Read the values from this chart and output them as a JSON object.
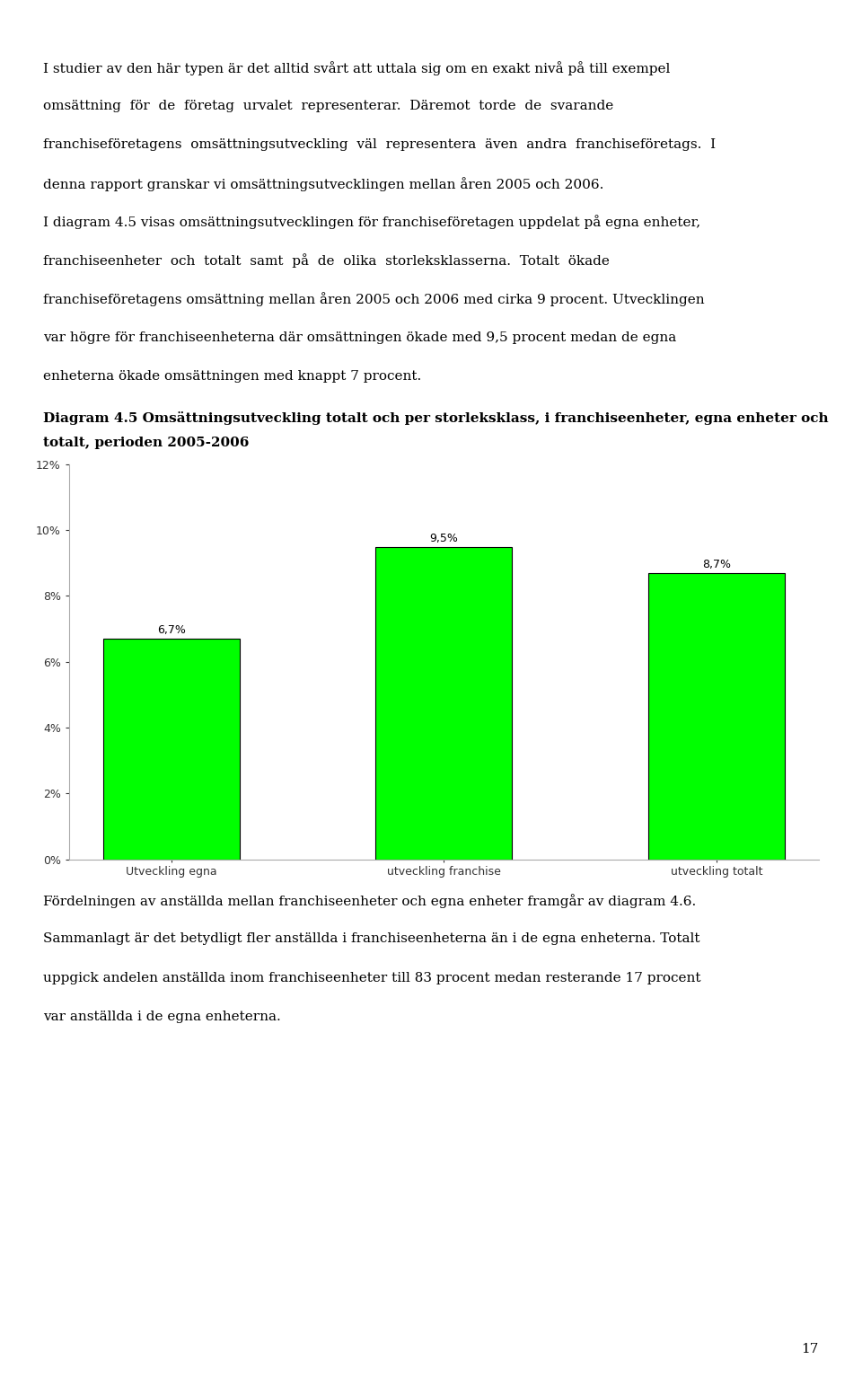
{
  "para1": "I studier av den här typen är det alltid svårt att uttala sig om en exakt nivå på till exempel omsättning för de företag urvalet representerar. Däremot torde de svarande franchiseföretagens omsättningsutveckling väl representera även andra franchiseföretags. I denna rapport granskar vi omsättningsutvecklingen mellan åren 2005 och 2006.",
  "para2": "I diagram 4.5 visas omsättningsutvecklingen för franchiseföretagen uppdelat på egna enheter, franchiseenheter och totalt samt på de olika storleksklasserna. Totalt ökade franchiseföretagens omsättning mellan åren 2005 och 2006 med cirka 9 procent. Utvecklingen var högre för franchiseenheterna där omsättningen ökade med 9,5 procent medan de egna enheterna ökade omsättningen med knappt 7 procent.",
  "diagram_title_bold": "Diagram 4.5 Omsättningsutveckling totalt och per storleksklass, i franchiseenheter, egna enheter och totalt, perioden 2005-2006",
  "categories": [
    "Utveckling egna",
    "utveckling franchise",
    "utveckling totalt"
  ],
  "values": [
    6.7,
    9.5,
    8.7
  ],
  "bar_color": "#00ff00",
  "bar_edge_color": "#000000",
  "ylim": [
    0,
    12
  ],
  "yticks": [
    0,
    2,
    4,
    6,
    8,
    10,
    12
  ],
  "ytick_labels": [
    "0%",
    "2%",
    "4%",
    "6%",
    "8%",
    "10%",
    "12%"
  ],
  "value_labels": [
    "6,7%",
    "9,5%",
    "8,7%"
  ],
  "para3": "Fördelningen av anställda mellan franchiseenheter och egna enheter framgår av diagram 4.6. Sammanlagt är det betydligt fler anställda i franchiseenheterna än i de egna enheterna. Totalt uppgick andelen anställda inom franchiseenheter till 83 procent medan resterande 17 procent var anställda i de egna enheterna.",
  "page_number": "17",
  "background_color": "#ffffff",
  "bar_width": 0.5
}
